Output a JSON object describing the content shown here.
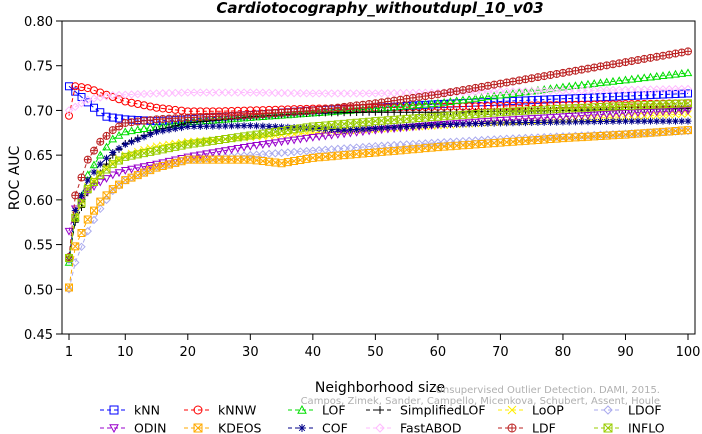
{
  "chart_data": {
    "type": "line",
    "title": "Cardiotocography_withoutdupl_10_v03",
    "xlabel": "Neighborhood size",
    "ylabel": "ROC AUC",
    "xlim": [
      1,
      100
    ],
    "ylim": [
      0.45,
      0.8
    ],
    "x_ticks": [
      "1",
      "10",
      "20",
      "30",
      "40",
      "50",
      "60",
      "70",
      "80",
      "90",
      "100"
    ],
    "y_ticks": [
      "0.45",
      "0.50",
      "0.55",
      "0.60",
      "0.65",
      "0.70",
      "0.75",
      "0.80"
    ],
    "grid": false,
    "legend_position": "bottom",
    "credit_lines": [
      "Unsupervised Outlier Detection. DAMI, 2015.",
      "Campos, Zimek, Sander, Campello, Micenkova, Schubert, Assent, Houle"
    ],
    "series": [
      {
        "name": "kNN",
        "color": "#0000ff",
        "marker": "square",
        "dash": "4,3",
        "points": [
          [
            1,
            0.727
          ],
          [
            3,
            0.715
          ],
          [
            5,
            0.703
          ],
          [
            7,
            0.693
          ],
          [
            10,
            0.69
          ],
          [
            15,
            0.688
          ],
          [
            20,
            0.69
          ],
          [
            30,
            0.695
          ],
          [
            40,
            0.7
          ],
          [
            50,
            0.703
          ],
          [
            60,
            0.707
          ],
          [
            70,
            0.71
          ],
          [
            80,
            0.713
          ],
          [
            90,
            0.716
          ],
          [
            100,
            0.719
          ]
        ]
      },
      {
        "name": "kNNW",
        "color": "#ff0000",
        "marker": "circle",
        "dash": "4,3",
        "points": [
          [
            1,
            0.694
          ],
          [
            2,
            0.727
          ],
          [
            4,
            0.725
          ],
          [
            6,
            0.72
          ],
          [
            8,
            0.715
          ],
          [
            10,
            0.71
          ],
          [
            15,
            0.703
          ],
          [
            20,
            0.699
          ],
          [
            25,
            0.699
          ],
          [
            30,
            0.7
          ],
          [
            40,
            0.702
          ],
          [
            50,
            0.703
          ],
          [
            60,
            0.704
          ],
          [
            70,
            0.705
          ],
          [
            80,
            0.706
          ],
          [
            90,
            0.707
          ],
          [
            100,
            0.708
          ]
        ]
      },
      {
        "name": "LOF",
        "color": "#00dd00",
        "marker": "triangle-up",
        "dash": "4,3",
        "points": [
          [
            1,
            0.53
          ],
          [
            2,
            0.58
          ],
          [
            4,
            0.628
          ],
          [
            6,
            0.65
          ],
          [
            8,
            0.668
          ],
          [
            10,
            0.676
          ],
          [
            15,
            0.682
          ],
          [
            20,
            0.687
          ],
          [
            30,
            0.692
          ],
          [
            40,
            0.697
          ],
          [
            50,
            0.702
          ],
          [
            60,
            0.708
          ],
          [
            70,
            0.717
          ],
          [
            80,
            0.726
          ],
          [
            90,
            0.734
          ],
          [
            100,
            0.742
          ]
        ]
      },
      {
        "name": "SimplifiedLOF",
        "color": "#000000",
        "marker": "plus",
        "dash": "4,3",
        "points": [
          [
            1,
            0.537
          ],
          [
            2,
            0.575
          ],
          [
            4,
            0.608
          ],
          [
            6,
            0.63
          ],
          [
            8,
            0.65
          ],
          [
            10,
            0.663
          ],
          [
            15,
            0.678
          ],
          [
            20,
            0.686
          ],
          [
            30,
            0.693
          ],
          [
            40,
            0.697
          ],
          [
            50,
            0.698
          ],
          [
            60,
            0.698
          ],
          [
            70,
            0.699
          ],
          [
            80,
            0.7
          ],
          [
            90,
            0.701
          ],
          [
            100,
            0.702
          ]
        ]
      },
      {
        "name": "LoOP",
        "color": "#ffee00",
        "marker": "x",
        "dash": "4,3",
        "points": [
          [
            1,
            0.535
          ],
          [
            2,
            0.583
          ],
          [
            4,
            0.615
          ],
          [
            6,
            0.63
          ],
          [
            8,
            0.642
          ],
          [
            10,
            0.65
          ],
          [
            15,
            0.66
          ],
          [
            20,
            0.665
          ],
          [
            30,
            0.67
          ],
          [
            40,
            0.675
          ],
          [
            50,
            0.679
          ],
          [
            60,
            0.683
          ],
          [
            70,
            0.687
          ],
          [
            80,
            0.69
          ],
          [
            90,
            0.693
          ],
          [
            100,
            0.696
          ]
        ]
      },
      {
        "name": "LDOF",
        "color": "#aaaaee",
        "marker": "diamond",
        "dash": "4,3",
        "points": [
          [
            1,
            0.5
          ],
          [
            2,
            0.53
          ],
          [
            4,
            0.565
          ],
          [
            6,
            0.59
          ],
          [
            8,
            0.61
          ],
          [
            10,
            0.622
          ],
          [
            15,
            0.637
          ],
          [
            20,
            0.645
          ],
          [
            30,
            0.65
          ],
          [
            40,
            0.655
          ],
          [
            50,
            0.66
          ],
          [
            60,
            0.664
          ],
          [
            70,
            0.668
          ],
          [
            80,
            0.671
          ],
          [
            90,
            0.674
          ],
          [
            100,
            0.677
          ]
        ]
      },
      {
        "name": "ODIN",
        "color": "#9900cc",
        "marker": "triangle-down",
        "dash": "4,3",
        "points": [
          [
            1,
            0.565
          ],
          [
            2,
            0.59
          ],
          [
            4,
            0.61
          ],
          [
            6,
            0.62
          ],
          [
            8,
            0.628
          ],
          [
            10,
            0.633
          ],
          [
            15,
            0.64
          ],
          [
            20,
            0.648
          ],
          [
            30,
            0.66
          ],
          [
            40,
            0.67
          ],
          [
            50,
            0.678
          ],
          [
            60,
            0.684
          ],
          [
            70,
            0.689
          ],
          [
            80,
            0.693
          ],
          [
            90,
            0.697
          ],
          [
            100,
            0.7
          ]
        ]
      },
      {
        "name": "KDEOS",
        "color": "#ffaa00",
        "marker": "square-x",
        "dash": "4,3",
        "points": [
          [
            1,
            0.502
          ],
          [
            2,
            0.548
          ],
          [
            4,
            0.578
          ],
          [
            6,
            0.598
          ],
          [
            8,
            0.612
          ],
          [
            10,
            0.622
          ],
          [
            15,
            0.636
          ],
          [
            20,
            0.645
          ],
          [
            30,
            0.645
          ],
          [
            35,
            0.641
          ],
          [
            40,
            0.647
          ],
          [
            50,
            0.653
          ],
          [
            60,
            0.659
          ],
          [
            70,
            0.664
          ],
          [
            80,
            0.669
          ],
          [
            90,
            0.673
          ],
          [
            100,
            0.678
          ]
        ]
      },
      {
        "name": "COF",
        "color": "#000088",
        "marker": "asterisk",
        "dash": "4,3",
        "points": [
          [
            1,
            0.533
          ],
          [
            2,
            0.588
          ],
          [
            4,
            0.622
          ],
          [
            6,
            0.64
          ],
          [
            8,
            0.653
          ],
          [
            10,
            0.662
          ],
          [
            15,
            0.676
          ],
          [
            20,
            0.682
          ],
          [
            30,
            0.683
          ],
          [
            40,
            0.68
          ],
          [
            45,
            0.678
          ],
          [
            50,
            0.68
          ],
          [
            60,
            0.684
          ],
          [
            70,
            0.686
          ],
          [
            80,
            0.687
          ],
          [
            90,
            0.688
          ],
          [
            100,
            0.688
          ]
        ]
      },
      {
        "name": "FastABOD",
        "color": "#ffbbff",
        "marker": "diamond",
        "dash": "4,3",
        "points": [
          [
            1,
            0.7
          ],
          [
            4,
            0.712
          ],
          [
            8,
            0.717
          ],
          [
            15,
            0.719
          ],
          [
            20,
            0.72
          ],
          [
            30,
            0.72
          ],
          [
            40,
            0.719
          ],
          [
            50,
            0.719
          ],
          [
            60,
            0.72
          ],
          [
            70,
            0.721
          ],
          [
            80,
            0.722
          ],
          [
            90,
            0.723
          ],
          [
            100,
            0.724
          ]
        ]
      },
      {
        "name": "LDF",
        "color": "#bb2222",
        "marker": "circle-plus",
        "dash": "4,3",
        "points": [
          [
            1,
            0.536
          ],
          [
            2,
            0.605
          ],
          [
            4,
            0.645
          ],
          [
            6,
            0.665
          ],
          [
            8,
            0.678
          ],
          [
            10,
            0.686
          ],
          [
            15,
            0.69
          ],
          [
            20,
            0.692
          ],
          [
            30,
            0.695
          ],
          [
            40,
            0.7
          ],
          [
            50,
            0.708
          ],
          [
            60,
            0.718
          ],
          [
            70,
            0.73
          ],
          [
            80,
            0.742
          ],
          [
            90,
            0.754
          ],
          [
            100,
            0.766
          ]
        ]
      },
      {
        "name": "INFLO",
        "color": "#99cc00",
        "marker": "square-x",
        "dash": "4,3",
        "points": [
          [
            1,
            0.535
          ],
          [
            2,
            0.58
          ],
          [
            4,
            0.612
          ],
          [
            6,
            0.628
          ],
          [
            8,
            0.64
          ],
          [
            10,
            0.648
          ],
          [
            15,
            0.655
          ],
          [
            20,
            0.662
          ],
          [
            30,
            0.672
          ],
          [
            40,
            0.682
          ],
          [
            50,
            0.688
          ],
          [
            60,
            0.693
          ],
          [
            70,
            0.698
          ],
          [
            80,
            0.702
          ],
          [
            90,
            0.705
          ],
          [
            100,
            0.708
          ]
        ]
      }
    ]
  }
}
